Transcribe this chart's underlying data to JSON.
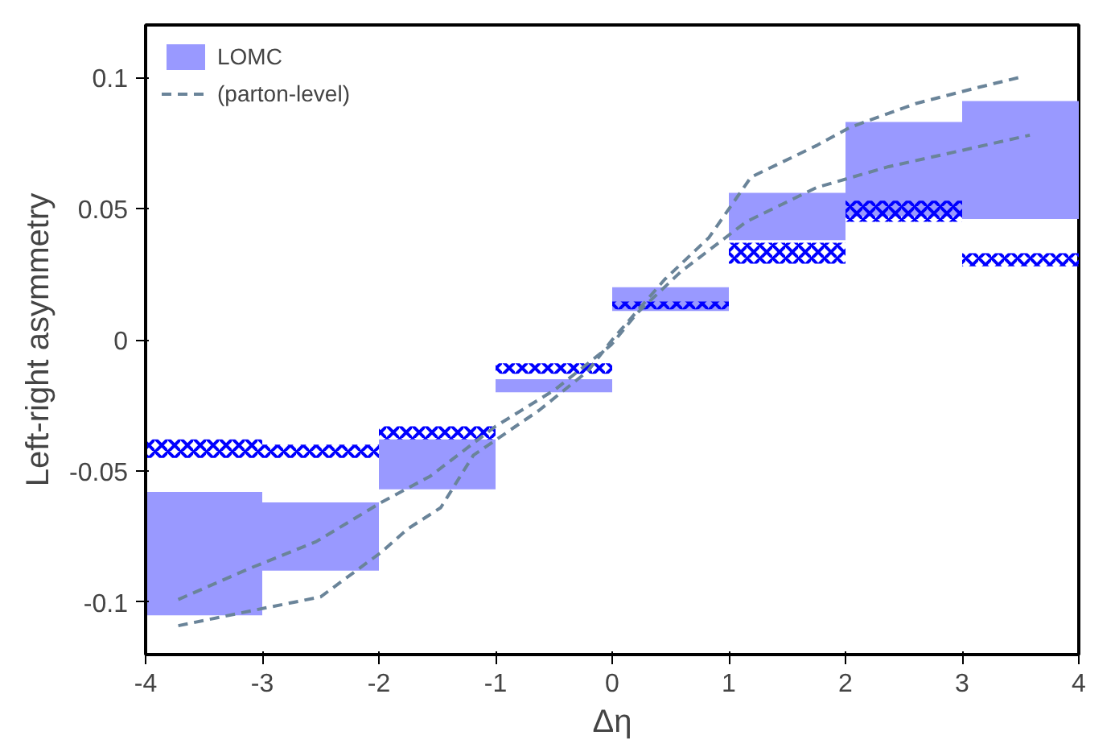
{
  "chart_data": {
    "type": "bar",
    "xlabel": "Δη",
    "ylabel": "Left-right asymmetry",
    "x": [
      -3.5,
      -2.5,
      -1.5,
      -0.5,
      0.5,
      1.5,
      2.5,
      3.5
    ],
    "xlim": [
      -4,
      4
    ],
    "xticks": [
      -4,
      -3,
      -2,
      -1,
      0,
      1,
      2,
      3,
      4
    ],
    "ylim": [
      -0.12,
      0.12
    ],
    "yticks": [
      -0.1,
      -0.05,
      0,
      0.05,
      0.1
    ],
    "grid": false,
    "legend": "top left",
    "series": [
      {
        "name": "LOMC",
        "color": "#9999ff",
        "base": [
          -0.105,
          -0.088,
          -0.057,
          -0.02,
          0.011,
          0.038,
          0.047,
          0.046
        ],
        "values": [
          0.047,
          0.026,
          0.019,
          0.005,
          0.009,
          0.018,
          0.036,
          0.045
        ]
      },
      {
        "color": "#0000ff",
        "base": [
          -0.045,
          -0.045,
          -0.038,
          -0.013,
          0.0116,
          0.029,
          0.045,
          0.028
        ],
        "values": [
          0.007,
          0.005,
          0.005,
          0.004,
          0.003,
          0.008,
          0.008,
          0.005
        ]
      },
      {
        "type": "line",
        "name": "(parton-level)",
        "color": "#6a8499",
        "line_style": "dashed",
        "marker": "none",
        "x": [
          -3.72,
          -3.06,
          -2.5,
          -1.98,
          -1.75,
          -1.47,
          -1.19,
          -0.63,
          -0.21,
          0.0,
          0.45,
          0.83,
          1.19,
          1.75,
          2.04,
          2.6,
          3.12,
          3.49
        ],
        "values": [
          -0.109,
          -0.103,
          -0.098,
          -0.081,
          -0.072,
          -0.064,
          -0.044,
          -0.027,
          -0.012,
          0.0,
          0.023,
          0.039,
          0.062,
          0.074,
          0.081,
          0.09,
          0.096,
          0.1
        ]
      },
      {
        "type": "line",
        "color": "#6a8499",
        "line_style": "dashed",
        "marker": "none",
        "x": [
          -3.72,
          -3.1,
          -2.54,
          -1.98,
          -1.56,
          -1.0,
          -0.49,
          -0.01,
          0.21,
          0.59,
          1.15,
          1.75,
          2.37,
          2.98,
          3.58
        ],
        "values": [
          -0.099,
          -0.087,
          -0.077,
          -0.062,
          -0.052,
          -0.033,
          -0.019,
          -0.002,
          0.01,
          0.026,
          0.045,
          0.058,
          0.066,
          0.072,
          0.078
        ]
      }
    ]
  }
}
